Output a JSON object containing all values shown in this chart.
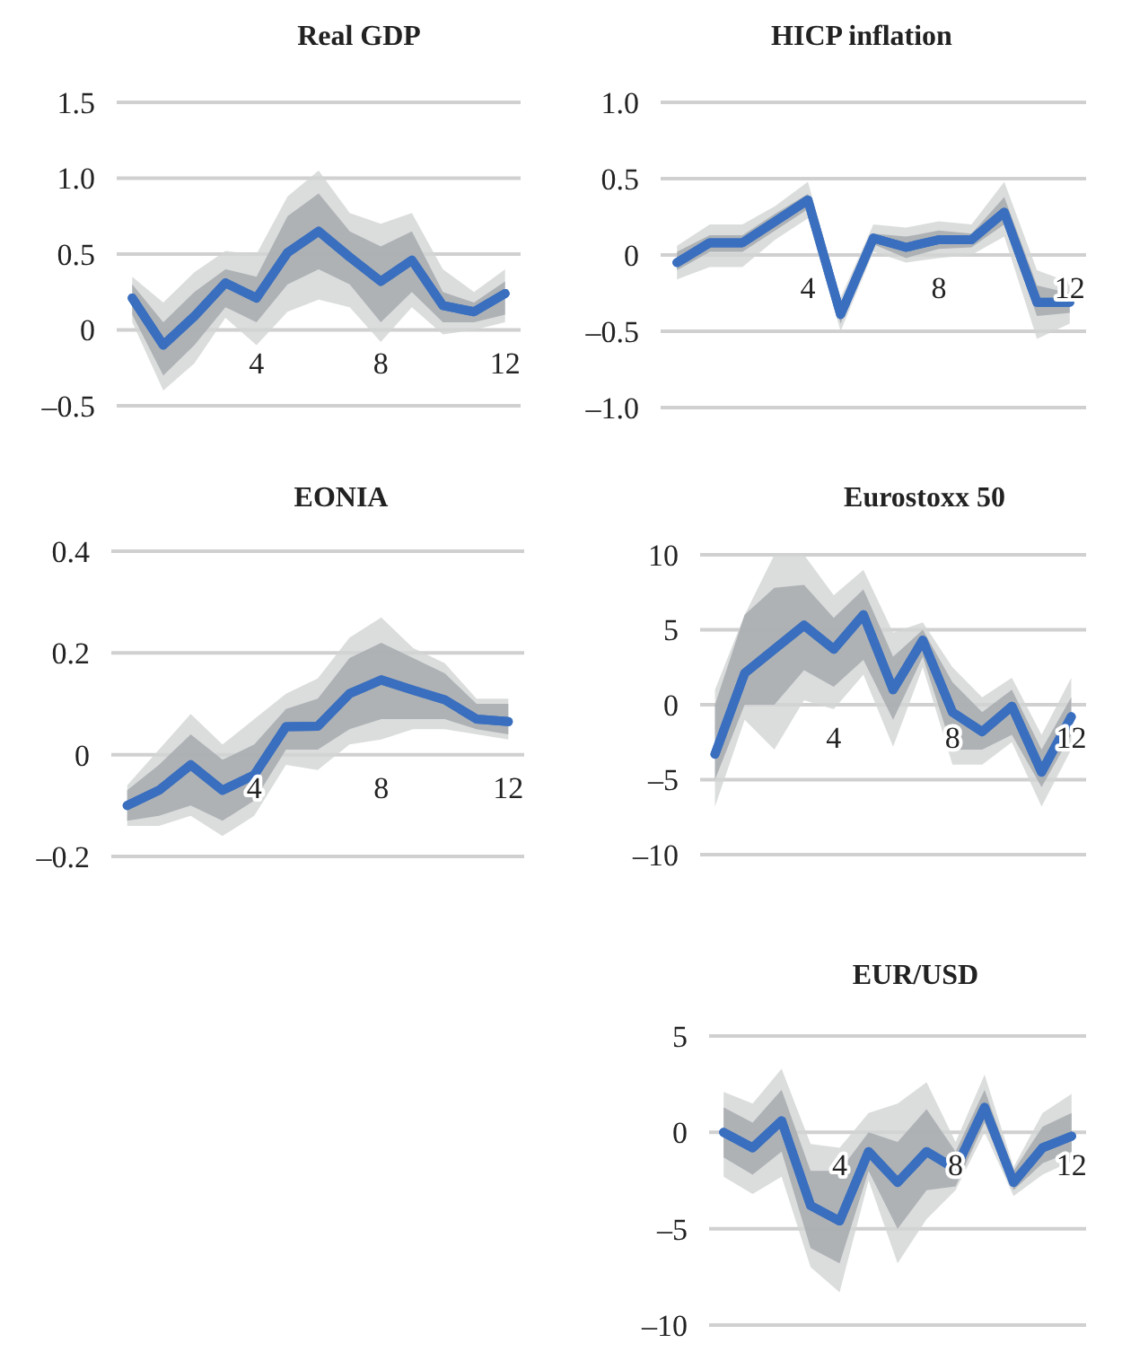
{
  "chart_data": [
    {
      "type": "line",
      "title": "Real GDP",
      "x": [
        0,
        1,
        2,
        3,
        4,
        5,
        6,
        7,
        8,
        9,
        10,
        11,
        12
      ],
      "xlim": [
        -0.5,
        12.5
      ],
      "xticks": [
        4,
        8,
        12
      ],
      "ylim": [
        -0.5,
        1.5
      ],
      "yticks": [
        {
          "value": -0.5,
          "label": "–0.5"
        },
        0,
        {
          "value": 0.5,
          "label": "0.5"
        },
        {
          "value": 1,
          "label": "1.0"
        },
        {
          "value": 1.5,
          "label": "1.5"
        }
      ],
      "grid": "y",
      "series": [
        {
          "color": "#3a6fbf",
          "values": [
            0.21,
            -0.1,
            0.09,
            0.31,
            0.21,
            0.51,
            0.65,
            0.48,
            0.32,
            0.46,
            0.16,
            0.12,
            0.24
          ],
          "lower": [
            0.1,
            -0.3,
            -0.1,
            0.15,
            0.05,
            0.3,
            0.4,
            0.3,
            0.05,
            0.25,
            0.05,
            0.05,
            0.1
          ],
          "upper": [
            0.3,
            0.05,
            0.25,
            0.4,
            0.35,
            0.75,
            0.9,
            0.65,
            0.55,
            0.65,
            0.25,
            0.18,
            0.32
          ]
        },
        {
          "color": "#3a6fbf",
          "values": [
            0.21,
            -0.1,
            0.09,
            0.31,
            0.21,
            0.51,
            0.65,
            0.48,
            0.32,
            0.46,
            0.16,
            0.12,
            0.24
          ],
          "lower": [
            0.05,
            -0.4,
            -0.22,
            0.08,
            -0.1,
            0.12,
            0.2,
            0.15,
            -0.08,
            0.15,
            -0.03,
            0,
            0.05
          ],
          "upper": [
            0.35,
            0.18,
            0.38,
            0.52,
            0.5,
            0.88,
            1.05,
            0.77,
            0.7,
            0.77,
            0.4,
            0.25,
            0.4
          ]
        }
      ]
    },
    {
      "type": "line",
      "title": "HICP inflation",
      "x": [
        0,
        1,
        2,
        3,
        4,
        5,
        6,
        7,
        8,
        9,
        10,
        11,
        12
      ],
      "xlim": [
        -0.5,
        12.5
      ],
      "xticks": [
        4,
        8,
        12
      ],
      "ylim": [
        -1,
        1
      ],
      "yticks": [
        {
          "value": -1,
          "label": "–1.0"
        },
        {
          "value": -0.5,
          "label": "–0.5"
        },
        0,
        {
          "value": 0.5,
          "label": "0.5"
        },
        {
          "value": 1,
          "label": "1.0"
        }
      ],
      "grid": "y",
      "series": [
        {
          "color": "#3a6fbf",
          "values": [
            -0.05,
            0.08,
            0.08,
            0.22,
            0.36,
            -0.39,
            0.11,
            0.05,
            0.1,
            0.1,
            0.28,
            -0.31,
            -0.31
          ],
          "lower": [
            -0.1,
            0.02,
            0.02,
            0.16,
            0.3,
            -0.45,
            0.07,
            -0.02,
            0.04,
            0.05,
            0.2,
            -0.4,
            -0.38
          ],
          "upper": [
            0.02,
            0.13,
            0.13,
            0.27,
            0.4,
            -0.33,
            0.14,
            0.12,
            0.16,
            0.14,
            0.38,
            -0.2,
            -0.25
          ]
        },
        {
          "color": "#3a6fbf",
          "values": [
            -0.05,
            0.08,
            0.08,
            0.22,
            0.36,
            -0.39,
            0.11,
            0.05,
            0.1,
            0.1,
            0.28,
            -0.31,
            -0.31
          ],
          "lower": [
            -0.16,
            -0.08,
            -0.08,
            0.1,
            0.24,
            -0.5,
            0.02,
            -0.05,
            -0.02,
            0,
            0.12,
            -0.55,
            -0.45
          ],
          "upper": [
            0.06,
            0.2,
            0.2,
            0.32,
            0.48,
            -0.28,
            0.2,
            0.18,
            0.22,
            0.2,
            0.48,
            -0.1,
            -0.18
          ]
        }
      ]
    },
    {
      "type": "line",
      "title": "EONIA",
      "x": [
        0,
        1,
        2,
        3,
        4,
        5,
        6,
        7,
        8,
        9,
        10,
        11,
        12
      ],
      "xlim": [
        -0.5,
        12.5
      ],
      "xticks": [
        4,
        8,
        12
      ],
      "ylim": [
        -0.2,
        0.4
      ],
      "yticks": [
        {
          "value": -0.2,
          "label": "–0.2"
        },
        0,
        {
          "value": 0.2,
          "label": "0.2"
        },
        {
          "value": 0.4,
          "label": "0.4"
        }
      ],
      "grid": "y",
      "series": [
        {
          "color": "#3a6fbf",
          "values": [
            -0.1,
            -0.07,
            -0.02,
            -0.07,
            -0.04,
            0.055,
            0.056,
            0.12,
            0.147,
            0.127,
            0.108,
            0.07,
            0.065
          ],
          "lower": [
            -0.13,
            -0.12,
            -0.1,
            -0.13,
            -0.09,
            0.01,
            0.01,
            0.05,
            0.07,
            0.07,
            0.07,
            0.05,
            0.04
          ],
          "upper": [
            -0.07,
            -0.02,
            0.04,
            -0.01,
            0.02,
            0.09,
            0.11,
            0.19,
            0.22,
            0.19,
            0.16,
            0.1,
            0.1
          ]
        },
        {
          "color": "#3a6fbf",
          "values": [
            -0.1,
            -0.07,
            -0.02,
            -0.07,
            -0.04,
            0.055,
            0.056,
            0.12,
            0.147,
            0.127,
            0.108,
            0.07,
            0.065
          ],
          "lower": [
            -0.14,
            -0.14,
            -0.12,
            -0.16,
            -0.12,
            -0.02,
            -0.03,
            0.02,
            0.03,
            0.05,
            0.05,
            0.04,
            0.03
          ],
          "upper": [
            -0.06,
            0.01,
            0.08,
            0.02,
            0.07,
            0.12,
            0.15,
            0.23,
            0.27,
            0.21,
            0.18,
            0.11,
            0.11
          ]
        }
      ]
    },
    {
      "type": "line",
      "title": "Eurostoxx 50",
      "x": [
        0,
        1,
        2,
        3,
        4,
        5,
        6,
        7,
        8,
        9,
        10,
        11,
        12
      ],
      "xlim": [
        -0.5,
        12.5
      ],
      "xticks": [
        4,
        8,
        12
      ],
      "ylim": [
        -10,
        10
      ],
      "yticks": [
        {
          "value": -10,
          "label": "–10"
        },
        {
          "value": -5,
          "label": "–5"
        },
        0,
        5,
        10
      ],
      "grid": "y",
      "series": [
        {
          "color": "#3a6fbf",
          "values": [
            -3.3,
            2.1,
            3.7,
            5.3,
            3.7,
            6,
            1,
            4.3,
            -0.5,
            -1.8,
            -0.1,
            -4.5,
            -0.8
          ],
          "lower": [
            -5,
            0,
            0,
            2.3,
            1.2,
            3,
            -1,
            3.2,
            -3,
            -3,
            -2,
            -5.5,
            -2
          ],
          "upper": [
            0,
            6,
            7.8,
            8,
            5.8,
            7.7,
            3.2,
            5,
            1.5,
            -0.5,
            1,
            -3,
            0.5
          ]
        },
        {
          "color": "#3a6fbf",
          "values": [
            -3.3,
            2.1,
            3.7,
            5.3,
            3.7,
            6,
            1,
            4.3,
            -0.5,
            -1.8,
            -0.1,
            -4.5,
            -0.8
          ],
          "lower": [
            -6.8,
            -1,
            -3,
            0.3,
            -0.3,
            2,
            -2.8,
            2.5,
            -4,
            -4,
            -2.5,
            -6.8,
            -3
          ],
          "upper": [
            1,
            6,
            10,
            10,
            7.3,
            9,
            4.8,
            5.5,
            2.5,
            0.5,
            1.8,
            -2,
            1.8
          ]
        }
      ]
    },
    {
      "type": "line",
      "title": "EUR/USD",
      "x": [
        0,
        1,
        2,
        3,
        4,
        5,
        6,
        7,
        8,
        9,
        10,
        11,
        12
      ],
      "xlim": [
        -0.5,
        12.5
      ],
      "xticks": [
        4,
        8,
        12
      ],
      "ylim": [
        -10,
        5
      ],
      "yticks": [
        {
          "value": -10,
          "label": "–10"
        },
        {
          "value": -5,
          "label": "–5"
        },
        0,
        5
      ],
      "grid": "y",
      "series": [
        {
          "color": "#3a6fbf",
          "values": [
            0,
            -0.8,
            0.6,
            -3.8,
            -4.6,
            -1,
            -2.6,
            -1,
            -1.9,
            1.3,
            -2.6,
            -0.8,
            -0.2
          ],
          "lower": [
            -1.3,
            -2.2,
            -1,
            -6,
            -6.8,
            -2,
            -5,
            -3,
            -2.8,
            0.5,
            -3,
            -1.6,
            -1
          ],
          "upper": [
            1.3,
            0.5,
            2.2,
            -2,
            -2,
            0,
            -0.5,
            1.2,
            -1,
            2.2,
            -2,
            0.3,
            1
          ]
        },
        {
          "color": "#3a6fbf",
          "values": [
            0,
            -0.8,
            0.6,
            -3.8,
            -4.6,
            -1,
            -2.6,
            -1,
            -1.9,
            1.3,
            -2.6,
            -0.8,
            -0.2
          ],
          "lower": [
            -2.3,
            -3.2,
            -2.3,
            -7,
            -8.3,
            -2.5,
            -6.8,
            -4.5,
            -3,
            0,
            -3.3,
            -2.2,
            -1.5
          ],
          "upper": [
            2.1,
            1.5,
            3.3,
            -0.6,
            -0.8,
            1,
            1.5,
            2.6,
            -0.5,
            3,
            -1.8,
            1,
            2
          ]
        }
      ]
    }
  ]
}
